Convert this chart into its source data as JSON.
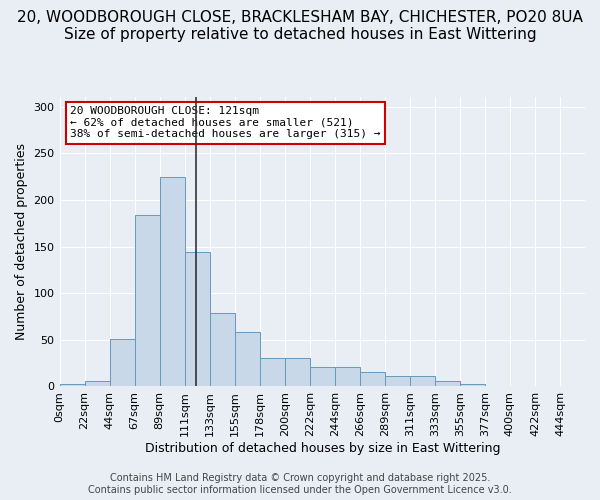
{
  "title_line1": "20, WOODBOROUGH CLOSE, BRACKLESHAM BAY, CHICHESTER, PO20 8UA",
  "title_line2": "Size of property relative to detached houses in East Wittering",
  "xlabel": "Distribution of detached houses by size in East Wittering",
  "ylabel": "Number of detached properties",
  "annotation_title": "20 WOODBOROUGH CLOSE: 121sqm",
  "annotation_line2": "← 62% of detached houses are smaller (521)",
  "annotation_line3": "38% of semi-detached houses are larger (315) →",
  "property_size": 121,
  "bar_color": "#c8d8e8",
  "bar_edge_color": "#6699bb",
  "vline_color": "#333333",
  "annotation_box_color": "#ffffff",
  "annotation_box_edge": "#cc0000",
  "background_color": "#e8eef4",
  "grid_color": "#ffffff",
  "bins": [
    0,
    22,
    44,
    67,
    89,
    111,
    133,
    155,
    178,
    200,
    222,
    244,
    266,
    289,
    311,
    333,
    355,
    377,
    400,
    422,
    444
  ],
  "bin_labels": [
    "0sqm",
    "22sqm",
    "44sqm",
    "67sqm",
    "89sqm",
    "111sqm",
    "133sqm",
    "155sqm",
    "178sqm",
    "200sqm",
    "222sqm",
    "244sqm",
    "266sqm",
    "289sqm",
    "311sqm",
    "333sqm",
    "355sqm",
    "377sqm",
    "400sqm",
    "422sqm",
    "444sqm"
  ],
  "counts": [
    3,
    6,
    51,
    184,
    225,
    144,
    79,
    58,
    30,
    30,
    21,
    21,
    16,
    11,
    11,
    6,
    3,
    1,
    0,
    1,
    1
  ],
  "ylim": [
    0,
    310
  ],
  "yticks": [
    0,
    50,
    100,
    150,
    200,
    250,
    300
  ],
  "footer_line1": "Contains HM Land Registry data © Crown copyright and database right 2025.",
  "footer_line2": "Contains public sector information licensed under the Open Government Licence v3.0.",
  "title_fontsize": 11,
  "subtitle_fontsize": 10,
  "axis_label_fontsize": 9,
  "tick_fontsize": 8,
  "annotation_fontsize": 8,
  "footer_fontsize": 7
}
